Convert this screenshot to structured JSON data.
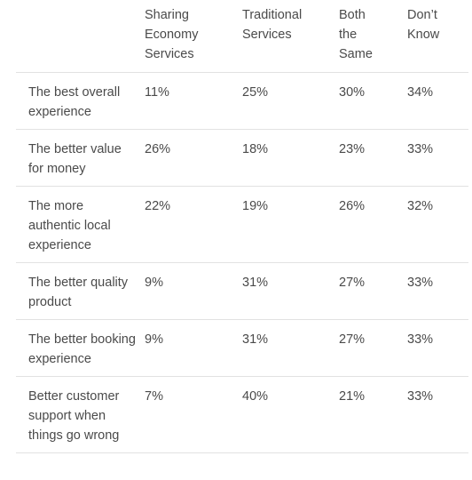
{
  "table": {
    "columns": [
      "",
      "Sharing Economy Services",
      "Traditional Services",
      "Both the Same",
      "Don’t Know"
    ],
    "rows": [
      {
        "label": "The best overall experience",
        "values": [
          "11%",
          "25%",
          "30%",
          "34%"
        ]
      },
      {
        "label": "The better value for money",
        "values": [
          "26%",
          "18%",
          "23%",
          "33%"
        ]
      },
      {
        "label": "The more authentic local experience",
        "values": [
          "22%",
          "19%",
          "26%",
          "32%"
        ]
      },
      {
        "label": "The better quality product",
        "values": [
          "9%",
          "31%",
          "27%",
          "33%"
        ]
      },
      {
        "label": "The better booking experience",
        "values": [
          "9%",
          "31%",
          "27%",
          "33%"
        ]
      },
      {
        "label": "Better customer support when things go wrong",
        "values": [
          "7%",
          "40%",
          "21%",
          "33%"
        ]
      }
    ]
  }
}
